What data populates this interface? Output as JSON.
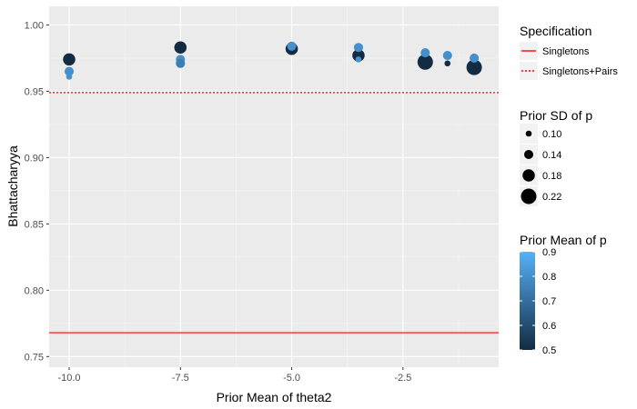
{
  "chart_data": {
    "type": "scatter",
    "xlabel": "Prior Mean of theta2",
    "ylabel": "Bhattacharyya",
    "xlim": [
      -10.45,
      -0.35
    ],
    "ylim": [
      0.742,
      1.014
    ],
    "x_ticks": [
      -10.0,
      -7.5,
      -5.0,
      -2.5
    ],
    "x_tick_labels": [
      "-10.0",
      "-7.5",
      "-5.0",
      "-2.5"
    ],
    "y_ticks": [
      0.75,
      0.8,
      0.85,
      0.9,
      0.95,
      1.0
    ],
    "y_tick_labels": [
      "0.75",
      "0.80",
      "0.85",
      "0.90",
      "0.95",
      "1.00"
    ],
    "grid": true,
    "panel_color": "#EBEBEB",
    "reference_lines": [
      {
        "name": "Singletons",
        "y": 0.768,
        "color": "#FF0000",
        "dash": "solid"
      },
      {
        "name": "Singletons+Pairs",
        "y": 0.949,
        "color": "#FF0000",
        "dash": "dotted"
      }
    ],
    "points": [
      {
        "x": -10.0,
        "y": 0.974,
        "sd": 0.18,
        "pmean": 0.5
      },
      {
        "x": -10.0,
        "y": 0.965,
        "sd": 0.14,
        "pmean": 0.8
      },
      {
        "x": -10.0,
        "y": 0.961,
        "sd": 0.1,
        "pmean": 0.8
      },
      {
        "x": -7.5,
        "y": 0.983,
        "sd": 0.18,
        "pmean": 0.5
      },
      {
        "x": -7.5,
        "y": 0.974,
        "sd": 0.14,
        "pmean": 0.8
      },
      {
        "x": -7.5,
        "y": 0.971,
        "sd": 0.14,
        "pmean": 0.75
      },
      {
        "x": -5.0,
        "y": 0.984,
        "sd": 0.14,
        "pmean": 0.8
      },
      {
        "x": -5.0,
        "y": 0.982,
        "sd": 0.18,
        "pmean": 0.5
      },
      {
        "x": -3.5,
        "y": 0.983,
        "sd": 0.14,
        "pmean": 0.8
      },
      {
        "x": -3.5,
        "y": 0.977,
        "sd": 0.18,
        "pmean": 0.5
      },
      {
        "x": -3.5,
        "y": 0.974,
        "sd": 0.1,
        "pmean": 0.8
      },
      {
        "x": -2.0,
        "y": 0.979,
        "sd": 0.14,
        "pmean": 0.8
      },
      {
        "x": -2.0,
        "y": 0.972,
        "sd": 0.22,
        "pmean": 0.5
      },
      {
        "x": -1.5,
        "y": 0.977,
        "sd": 0.14,
        "pmean": 0.8
      },
      {
        "x": -1.5,
        "y": 0.971,
        "sd": 0.1,
        "pmean": 0.5
      },
      {
        "x": -0.9,
        "y": 0.975,
        "sd": 0.14,
        "pmean": 0.8
      },
      {
        "x": -0.9,
        "y": 0.968,
        "sd": 0.22,
        "pmean": 0.5
      }
    ],
    "legends": {
      "specification": {
        "title": "Specification",
        "entries": [
          {
            "label": "Singletons",
            "dash": "solid",
            "color": "#FF0000"
          },
          {
            "label": "Singletons+Pairs",
            "dash": "dotted",
            "color": "#FF0000"
          }
        ]
      },
      "size": {
        "title": "Prior SD of p",
        "entries": [
          {
            "label": "0.10",
            "value": 0.1
          },
          {
            "label": "0.14",
            "value": 0.14
          },
          {
            "label": "0.18",
            "value": 0.18
          },
          {
            "label": "0.22",
            "value": 0.22
          }
        ]
      },
      "color": {
        "title": "Prior Mean of p",
        "range": [
          0.5,
          0.9
        ],
        "low_color": "#132B43",
        "high_color": "#56B1F7",
        "ticks": [
          {
            "label": "0.9",
            "value": 0.9
          },
          {
            "label": "0.8",
            "value": 0.8
          },
          {
            "label": "0.7",
            "value": 0.7
          },
          {
            "label": "0.6",
            "value": 0.6
          },
          {
            "label": "0.5",
            "value": 0.5
          }
        ]
      }
    }
  }
}
